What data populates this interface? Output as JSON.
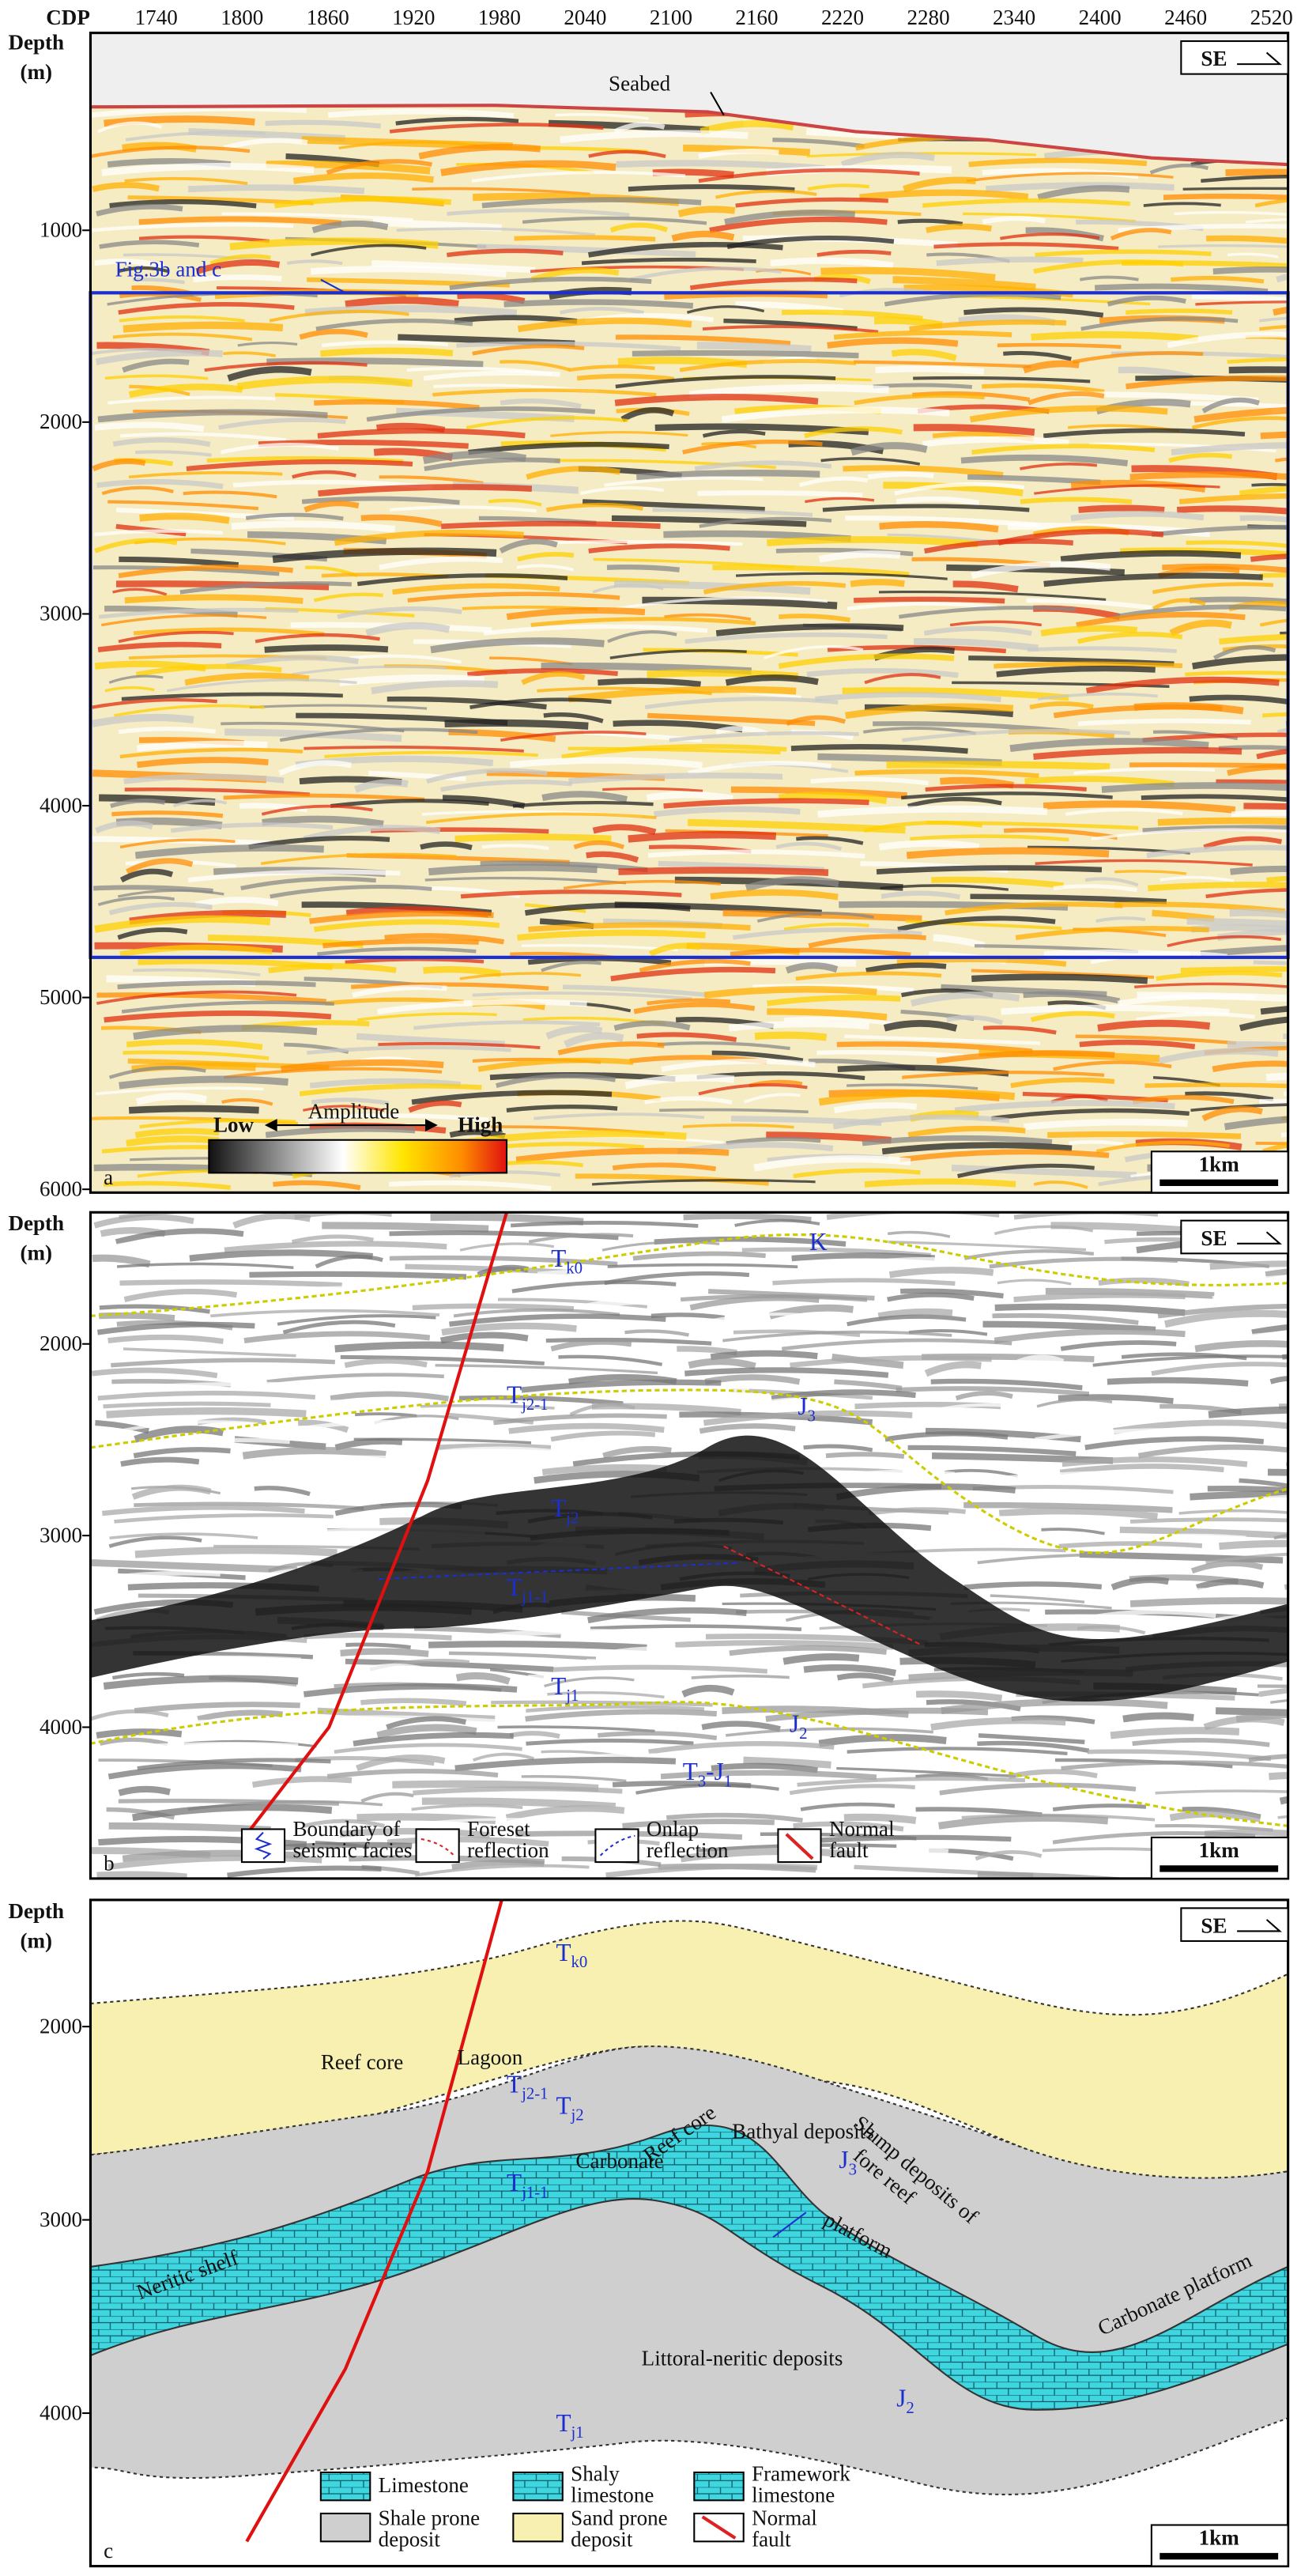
{
  "panel_a": {
    "cdp_label": "CDP",
    "cdp_ticks": [
      "1740",
      "1800",
      "1860",
      "1920",
      "1980",
      "2040",
      "2100",
      "2160",
      "2220",
      "2280",
      "2340",
      "2400",
      "2460",
      "2520"
    ],
    "depth_title": [
      "Depth",
      "(m)"
    ],
    "depth_ticks": [
      "1000",
      "2000",
      "3000",
      "4000",
      "5000",
      "6000"
    ],
    "direction": "SE",
    "seabed": "Seabed",
    "callout": "Fig.3b and c",
    "colorbar": {
      "title": "Amplitude",
      "low": "Low",
      "high": "High"
    },
    "scale_bar": "1km",
    "panel_label": "a"
  },
  "panel_b": {
    "depth_title": [
      "Depth",
      "(m)"
    ],
    "depth_ticks": [
      "2000",
      "3000",
      "4000"
    ],
    "direction": "SE",
    "horizons": [
      [
        "T",
        "k0"
      ],
      [
        "K"
      ],
      [
        "T",
        "j2-1"
      ],
      [
        "J",
        "3"
      ],
      [
        "T",
        "j2"
      ],
      [
        "T",
        "j1-1"
      ],
      [
        "J",
        "2"
      ],
      [
        "T",
        "j1"
      ],
      [
        "T",
        "3",
        "-J",
        "1"
      ]
    ],
    "legend": [
      [
        "Boundary of",
        "seismic facies"
      ],
      [
        "Foreset",
        "reflection"
      ],
      [
        "Onlap",
        "reflection"
      ],
      [
        "Normal",
        "fault"
      ]
    ],
    "scale_bar": "1km",
    "panel_label": "b"
  },
  "panel_c": {
    "depth_title": [
      "Depth",
      "(m)"
    ],
    "depth_ticks": [
      "2000",
      "3000",
      "4000"
    ],
    "direction": "SE",
    "horizons": [
      [
        "T",
        "k0"
      ],
      [
        "T",
        "j2-1"
      ],
      [
        "J",
        "3"
      ],
      [
        "T",
        "j2"
      ],
      [
        "T",
        "j1-1"
      ],
      [
        "J",
        "2"
      ],
      [
        "T",
        "j1"
      ]
    ],
    "annotations": [
      "Bathyal deposits",
      "Reef core",
      "Lagoon",
      "Reef core",
      "Carbonate",
      "platform",
      "Slump deposits of",
      "fore reef",
      "Neritic shelf",
      "Littoral-neritic deposits",
      "Carbonate platform"
    ],
    "legend": [
      [
        "Limestone"
      ],
      [
        "Shaly",
        "limestone"
      ],
      [
        "Framework",
        "limestone"
      ],
      [
        "Shale prone",
        "deposit"
      ],
      [
        "Sand prone",
        "deposit"
      ],
      [
        "Normal",
        "fault"
      ]
    ],
    "scale_bar": "1km",
    "panel_label": "c"
  }
}
